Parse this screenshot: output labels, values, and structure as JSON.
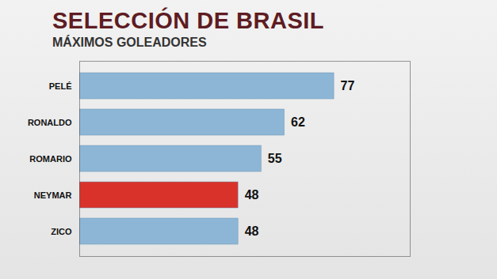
{
  "chart_data": {
    "type": "bar",
    "title": "SELECCIÓN DE BRASIL",
    "subtitle": "MÁXIMOS GOLEADORES",
    "orientation": "horizontal",
    "categories": [
      "PELÉ",
      "RONALDO",
      "ROMARIO",
      "NEYMAR",
      "ZICO"
    ],
    "values": [
      77,
      62,
      55,
      48,
      48
    ],
    "colors": [
      "#8db6d6",
      "#8db6d6",
      "#8db6d6",
      "#d8322b",
      "#8db6d6"
    ],
    "xlim": [
      0,
      100
    ],
    "xticks": [],
    "grid": false,
    "data_labels": true,
    "tick_labels": "y"
  }
}
